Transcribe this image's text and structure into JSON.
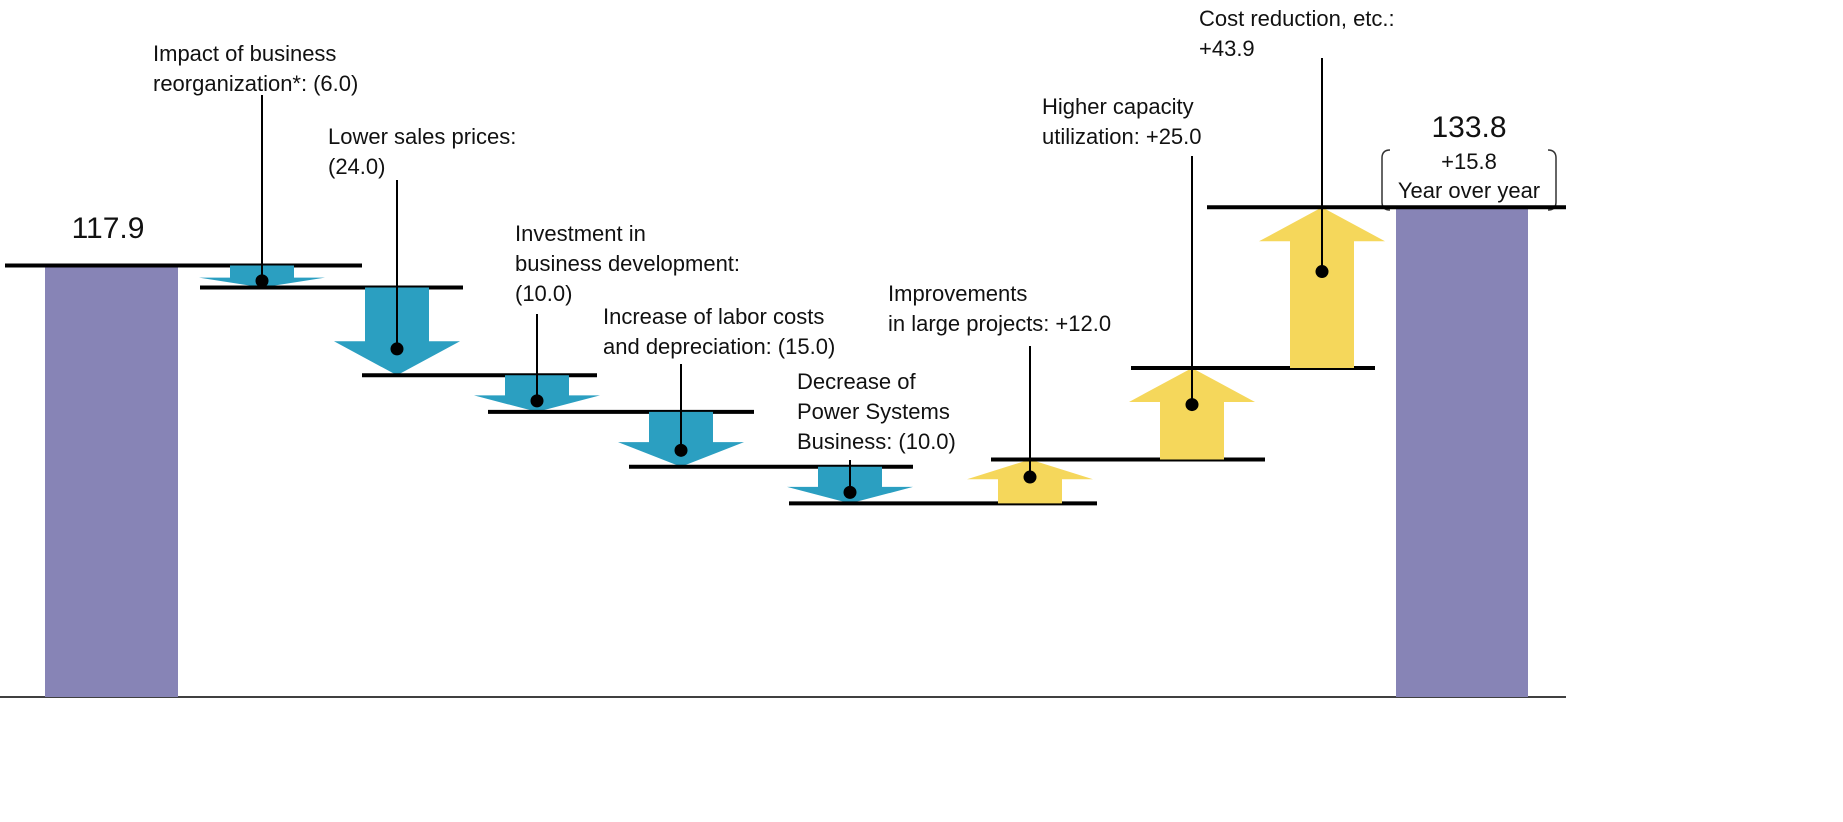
{
  "chart_data": {
    "type": "waterfall",
    "start": {
      "value": 117.9
    },
    "end": {
      "value": 133.8,
      "change": 15.8,
      "change_label": "+15.8",
      "change_text": "Year over year"
    },
    "categories": [
      [
        "Impact of business",
        "reorganization*:"
      ],
      [
        "Lower sales prices:"
      ],
      [
        "Investment in",
        "business development:"
      ],
      [
        "Increase of labor costs",
        "and depreciation:"
      ],
      [
        "Decrease of",
        "Power Systems",
        "Business:"
      ],
      [
        "Improvements",
        "in large projects:"
      ],
      [
        "Higher capacity",
        "utilization:"
      ],
      [
        "Cost reduction, etc.:"
      ]
    ],
    "values": [
      -6,
      -24,
      -10,
      -15,
      -10,
      12,
      25,
      43.9
    ],
    "value_labels": [
      "(6.0)",
      "(24.0)",
      "(10.0)",
      "(15.0)",
      "(10.0)",
      "+12.0",
      "+25.0",
      "+43.9"
    ],
    "colors": {
      "start_end": "#8784b6",
      "decrease": "#2b9fc1",
      "increase": "#f5d75b"
    },
    "ylim": [
      0,
      140
    ]
  }
}
